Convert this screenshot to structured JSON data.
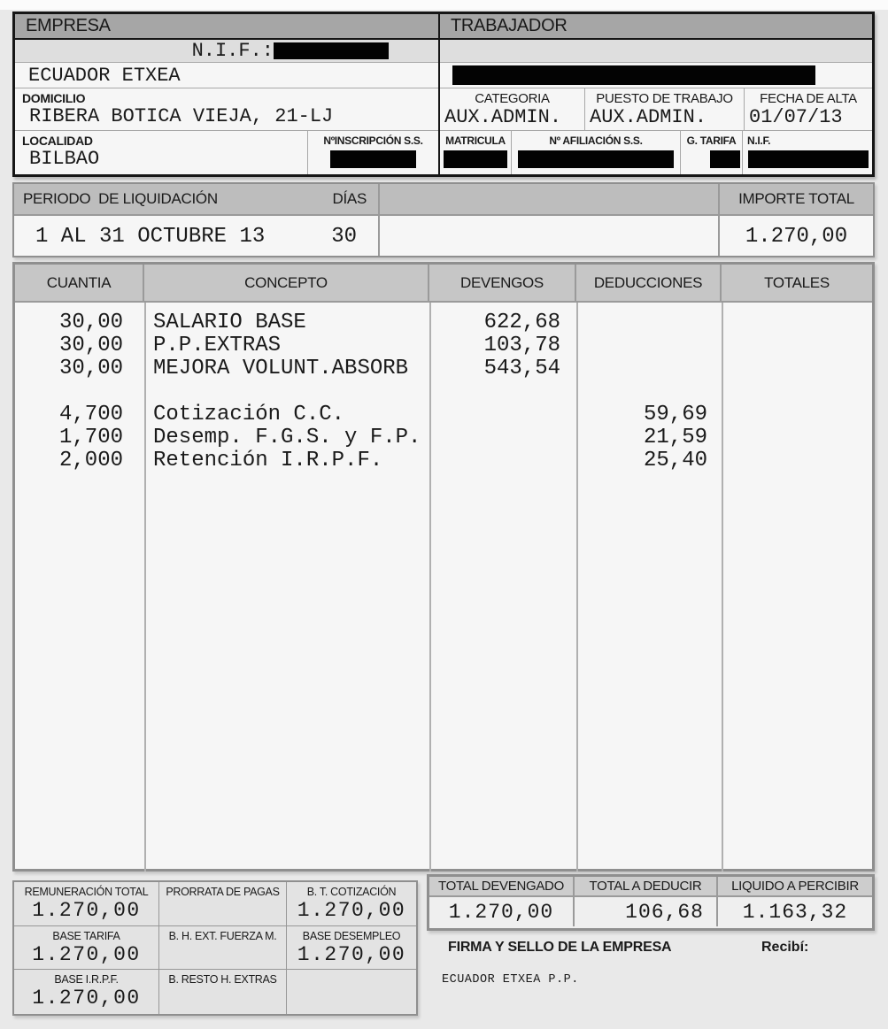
{
  "colors": {
    "page_bg": "#e9e9e9",
    "cell_bg": "#f6f6f6",
    "header_band_dark": "#a6a6a6",
    "header_band_light": "#c6c6c6",
    "shaded_row": "#dedede",
    "border_black": "#161616",
    "border_gray": "#8f8f8f",
    "redaction": "#030303"
  },
  "empresa": {
    "header": "EMPRESA",
    "nif_label": "N.I.F.:",
    "nombre": "ECUADOR ETXEA",
    "domicilio_label": "DOMICILIO",
    "domicilio": "RIBERA BOTICA VIEJA, 21-LJ",
    "localidad_label": "LOCALIDAD",
    "localidad": "BILBAO",
    "inscripcion_ss_label": "NºINSCRIPCIÓN S.S."
  },
  "trabajador": {
    "header": "TRABAJADOR",
    "categoria_label": "CATEGORIA",
    "categoria": "AUX.ADMIN.",
    "puesto_label": "PUESTO DE TRABAJO",
    "puesto": "AUX.ADMIN.",
    "fecha_alta_label": "FECHA DE ALTA",
    "fecha_alta": "01/07/13",
    "matricula_label": "MATRICULA",
    "afiliacion_ss_label": "Nº AFILIACIÓN S.S.",
    "g_tarifa_label": "G. TARIFA",
    "nif_label": "N.I.F."
  },
  "periodo": {
    "titulo": "PERIODO  DE LIQUIDACIÓN",
    "dias_label": "DÍAS",
    "importe_total_label": "IMPORTE TOTAL",
    "rango": "1 AL 31 OCTUBRE 13",
    "dias": "30",
    "importe_total": "1.270,00"
  },
  "tabla": {
    "headers": {
      "cuantia": "CUANTIA",
      "concepto": "CONCEPTO",
      "devengos": "DEVENGOS",
      "deducciones": "DEDUCCIONES",
      "totales": "TOTALES"
    },
    "rows": [
      {
        "cuantia": "30,00",
        "concepto": "SALARIO BASE",
        "devengo": "622,68",
        "deduccion": "",
        "total": ""
      },
      {
        "cuantia": "30,00",
        "concepto": "P.P.EXTRAS",
        "devengo": "103,78",
        "deduccion": "",
        "total": ""
      },
      {
        "cuantia": "30,00",
        "concepto": "MEJORA VOLUNT.ABSORB",
        "devengo": "543,54",
        "deduccion": "",
        "total": ""
      },
      {
        "cuantia": "4,700",
        "concepto": "Cotización C.C.",
        "devengo": "",
        "deduccion": "59,69",
        "total": ""
      },
      {
        "cuantia": "1,700",
        "concepto": "Desemp. F.G.S. y F.P.",
        "devengo": "",
        "deduccion": "21,59",
        "total": ""
      },
      {
        "cuantia": "2,000",
        "concepto": "Retención I.R.P.F.",
        "devengo": "",
        "deduccion": "25,40",
        "total": ""
      }
    ]
  },
  "bases": {
    "cells": [
      {
        "label": "REMUNERACIÓN TOTAL",
        "value": "1.270,00"
      },
      {
        "label": "PRORRATA DE PAGAS",
        "value": ""
      },
      {
        "label": "B. T. COTIZACIÓN",
        "value": "1.270,00"
      },
      {
        "label": "BASE TARIFA",
        "value": "1.270,00"
      },
      {
        "label": "B. H. EXT. FUERZA M.",
        "value": ""
      },
      {
        "label": "BASE DESEMPLEO",
        "value": "1.270,00"
      },
      {
        "label": "BASE I.R.P.F.",
        "value": "1.270,00"
      },
      {
        "label": "B. RESTO H. EXTRAS",
        "value": ""
      },
      {
        "label": "",
        "value": ""
      }
    ]
  },
  "totales": {
    "devengado_label": "TOTAL DEVENGADO",
    "devengado": "1.270,00",
    "deducir_label": "TOTAL A DEDUCIR",
    "deducir": "106,68",
    "liquido_label": "LIQUIDO A PERCIBIR",
    "liquido": "1.163,32"
  },
  "firma": {
    "titulo": "FIRMA Y SELLO DE LA EMPRESA",
    "recibi": "Recibí:",
    "empresa": "ECUADOR ETXEA P.P."
  }
}
